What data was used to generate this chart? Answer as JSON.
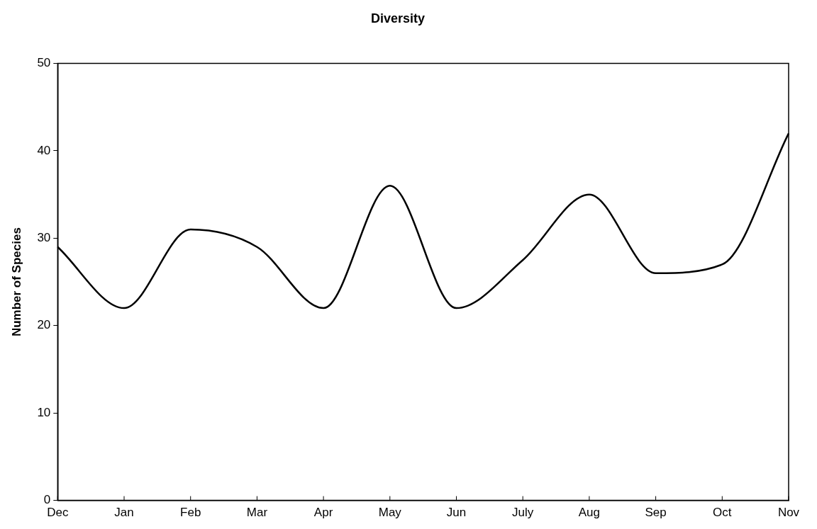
{
  "chart_data": {
    "type": "line",
    "title": "Diversity",
    "ylabel": "Number of Species",
    "categories": [
      "Dec",
      "Jan",
      "Feb",
      "Mar",
      "Apr",
      "May",
      "Jun",
      "July",
      "Aug",
      "Sep",
      "Oct",
      "Nov"
    ],
    "series": [
      {
        "color": "#000000",
        "values": [
          29,
          22,
          31,
          29,
          22,
          36,
          22,
          27.5,
          35,
          26,
          27,
          42
        ]
      }
    ],
    "ylim": [
      0,
      50
    ],
    "yticks": [
      0,
      10,
      20,
      30,
      40,
      50
    ],
    "grid": false,
    "legend": false,
    "marker": "none",
    "line_style": "solid"
  }
}
